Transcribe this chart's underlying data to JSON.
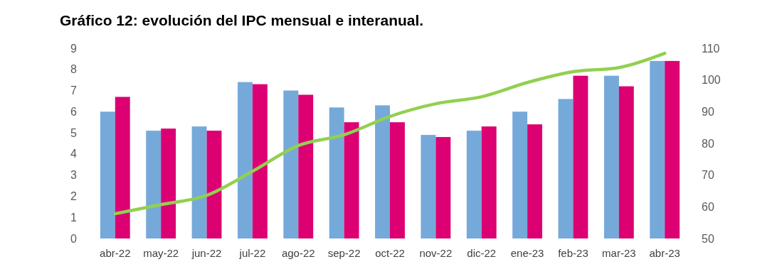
{
  "chart_data": {
    "type": "bar",
    "title": "Gráfico 12: evolución del IPC mensual e interanual.",
    "categories": [
      "abr-22",
      "may-22",
      "jun-22",
      "jul-22",
      "ago-22",
      "sep-22",
      "oct-22",
      "nov-22",
      "dic-22",
      "ene-23",
      "feb-23",
      "mar-23",
      "abr-23"
    ],
    "series": [
      {
        "color": "#75a9da",
        "values": [
          6.0,
          5.1,
          5.3,
          7.4,
          7.0,
          6.2,
          6.3,
          4.9,
          5.1,
          6.0,
          6.6,
          7.7,
          8.4
        ]
      },
      {
        "color": "#dc0073",
        "values": [
          6.7,
          5.2,
          5.1,
          7.3,
          6.8,
          5.5,
          5.5,
          4.8,
          5.3,
          5.4,
          7.7,
          7.2,
          8.4
        ]
      },
      {
        "type": "line",
        "axis": "y2",
        "color": "#92d050",
        "values": [
          57.8,
          60.7,
          63.6,
          71.2,
          79.3,
          82.7,
          88.5,
          92.5,
          94.7,
          99.2,
          102.6,
          103.9,
          108.4
        ]
      }
    ],
    "ylim": [
      0,
      9
    ],
    "yticks": [
      0,
      1,
      2,
      3,
      4,
      5,
      6,
      7,
      8,
      9
    ],
    "y2lim": [
      50,
      110
    ],
    "y2ticks": [
      50,
      60,
      70,
      80,
      90,
      100,
      110
    ],
    "grid": false
  }
}
